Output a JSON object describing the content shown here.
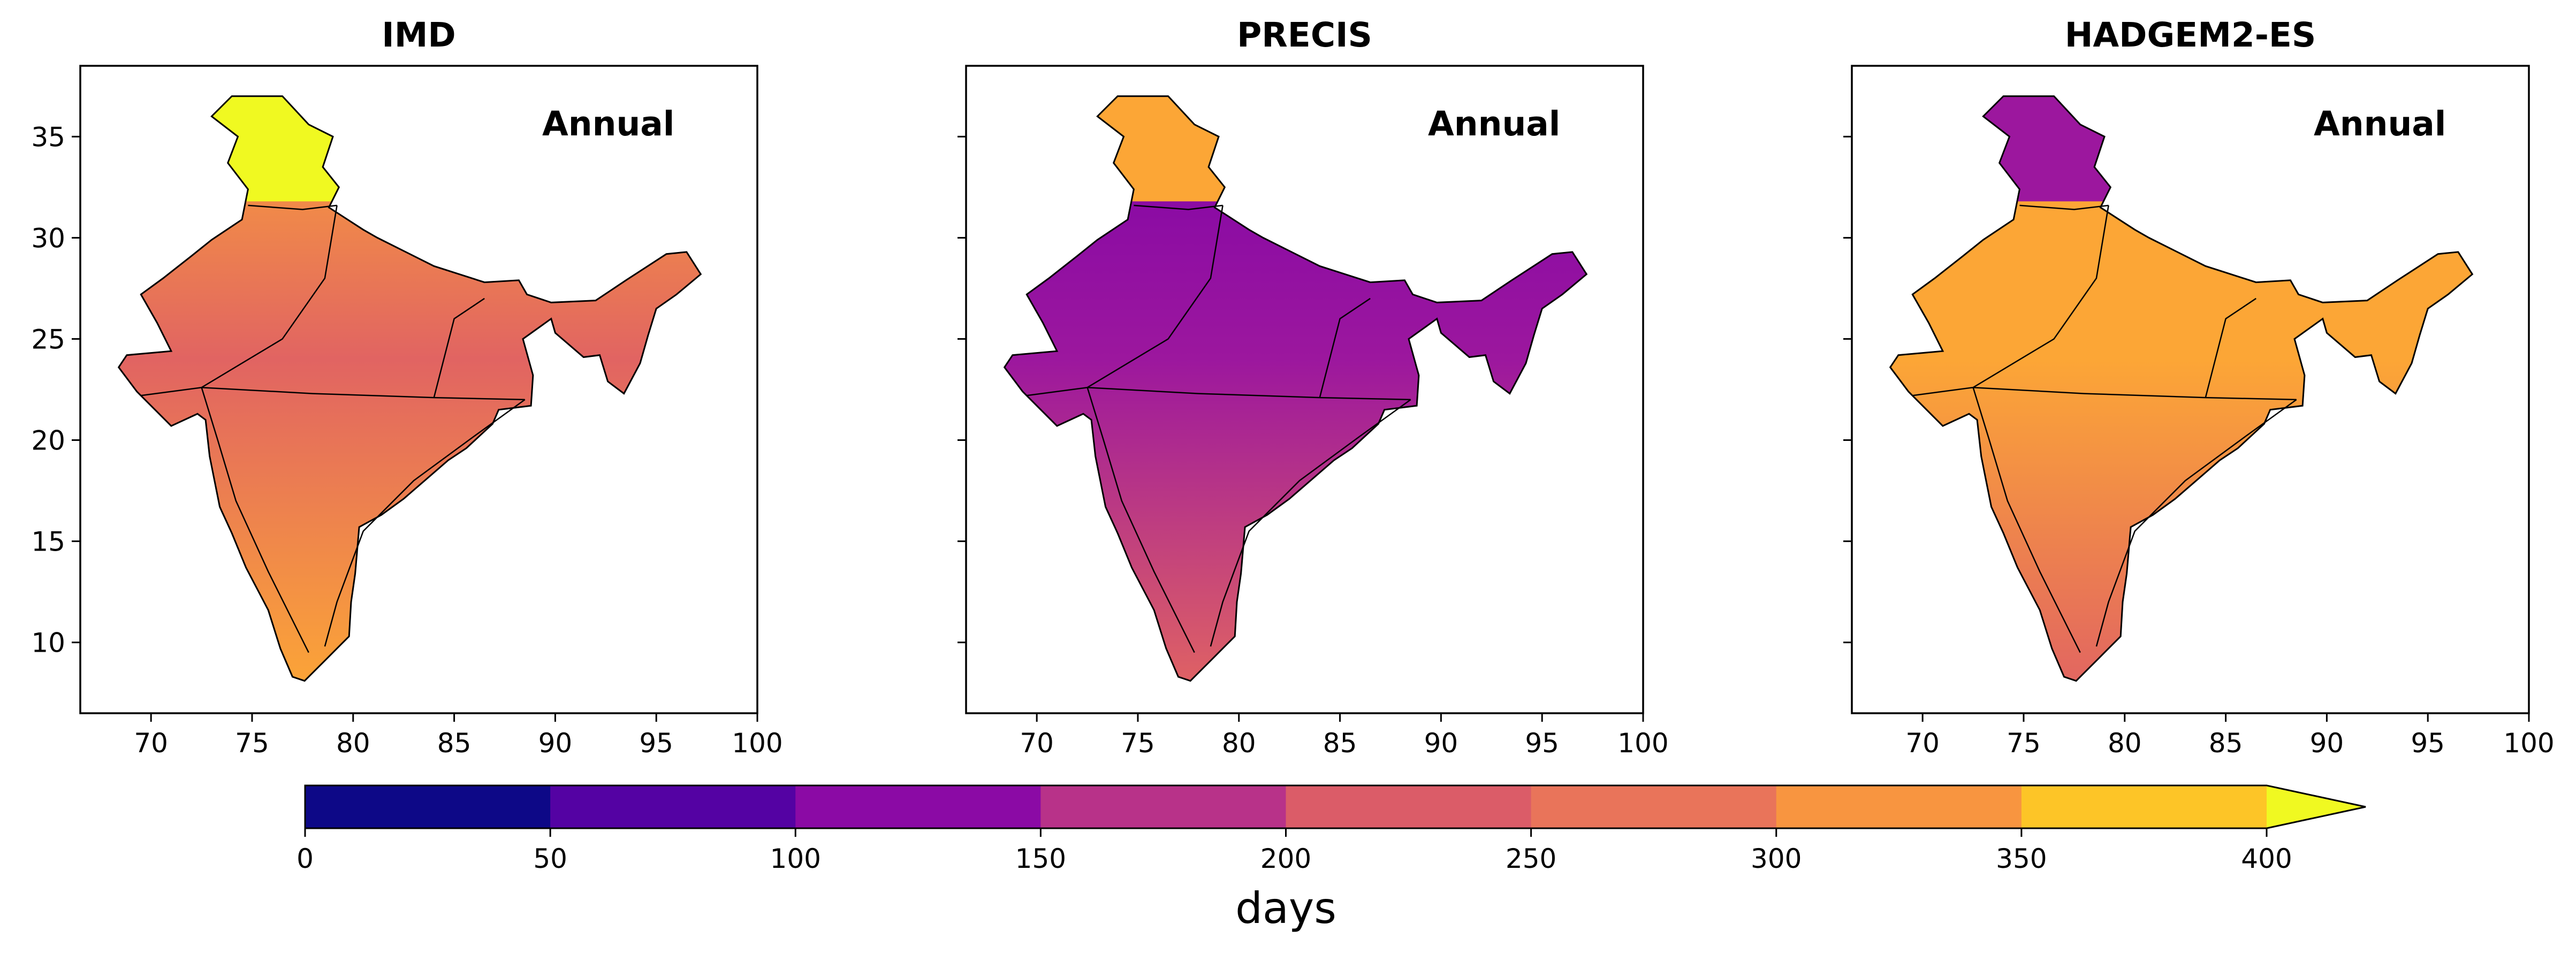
{
  "chart_data": [
    {
      "type": "heatmap",
      "title": "IMD",
      "annotation": "Annual",
      "xlim": [
        66.5,
        100
      ],
      "ylim": [
        6.5,
        38.5
      ],
      "xticks": [
        70,
        75,
        80,
        85,
        90,
        95,
        100
      ],
      "yticks": [
        10,
        15,
        20,
        25,
        30,
        35
      ],
      "show_ytick_labels": true,
      "colors": {
        "north": "#fca636",
        "mid": "#e16462",
        "south": "#fca636",
        "hill": "#f0f921"
      }
    },
    {
      "type": "heatmap",
      "title": "PRECIS",
      "annotation": "Annual",
      "xlim": [
        66.5,
        100
      ],
      "ylim": [
        6.5,
        38.5
      ],
      "xticks": [
        70,
        75,
        80,
        85,
        90,
        95,
        100
      ],
      "yticks": [
        10,
        15,
        20,
        25,
        30,
        35
      ],
      "show_ytick_labels": false,
      "colors": {
        "north": "#7e03a8",
        "mid": "#9c179e",
        "south": "#e16462",
        "hill": "#fca636"
      }
    },
    {
      "type": "heatmap",
      "title": "HADGEM2-ES",
      "annotation": "Annual",
      "xlim": [
        66.5,
        100
      ],
      "ylim": [
        6.5,
        38.5
      ],
      "xticks": [
        70,
        75,
        80,
        85,
        90,
        95,
        100
      ],
      "yticks": [
        10,
        15,
        20,
        25,
        30,
        35
      ],
      "show_ytick_labels": false,
      "colors": {
        "north": "#fca636",
        "mid": "#fca636",
        "south": "#e16462",
        "hill": "#9c179e"
      }
    }
  ],
  "colorbar": {
    "label": "days",
    "boundaries": [
      0,
      50,
      100,
      150,
      200,
      250,
      300,
      350,
      400
    ],
    "ticks": [
      0,
      50,
      100,
      150,
      200,
      250,
      300,
      350,
      400
    ],
    "colors": [
      "#0d0887",
      "#5402a3",
      "#8b0aa5",
      "#b83289",
      "#db5c68",
      "#e9745a",
      "#f89540",
      "#fdc527"
    ],
    "extend_color": "#f0f921"
  }
}
